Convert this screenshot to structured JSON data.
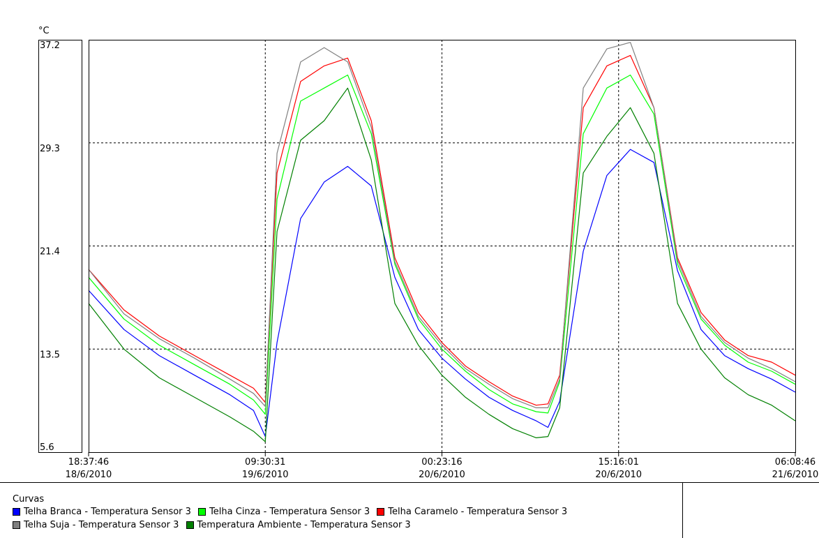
{
  "chart_data": {
    "type": "line",
    "ylabel": "°C",
    "ylim": [
      5.6,
      37.2
    ],
    "y_ticks": [
      "37.2",
      "29.3",
      "21.4",
      "13.5",
      "5.6"
    ],
    "x_ticks": [
      {
        "time": "18:37:46",
        "date": "18/6/2010"
      },
      {
        "time": "09:30:31",
        "date": "19/6/2010"
      },
      {
        "time": "00:23:16",
        "date": "20/6/2010"
      },
      {
        "time": "15:16:01",
        "date": "20/6/2010"
      },
      {
        "time": "06:08:46",
        "date": "21/6/2010"
      }
    ],
    "x_hours": [
      0,
      3,
      6,
      9,
      12,
      14,
      15,
      16,
      18,
      20,
      22,
      24,
      26,
      28,
      30,
      32,
      34,
      36,
      38,
      39,
      40,
      42,
      44,
      46,
      48,
      50,
      52,
      54,
      56,
      58,
      60
    ],
    "grid": true,
    "legend_title": "Curvas",
    "series": [
      {
        "name": "Telha Branca - Temperatura Sensor 3",
        "color": "#0000ff",
        "values": [
          18.0,
          15.0,
          13.0,
          11.5,
          10.0,
          8.8,
          6.8,
          14.0,
          23.5,
          26.3,
          27.5,
          26.0,
          19.0,
          15.0,
          12.8,
          11.2,
          9.8,
          8.8,
          8.0,
          7.5,
          9.5,
          21.0,
          26.8,
          28.8,
          27.8,
          19.5,
          15.0,
          13.0,
          12.0,
          11.2,
          10.2
        ]
      },
      {
        "name": "Telha Cinza - Temperatura Sensor 3",
        "color": "#00ff00",
        "values": [
          19.0,
          15.8,
          13.8,
          12.3,
          10.8,
          9.6,
          8.5,
          25.0,
          32.5,
          33.5,
          34.5,
          30.0,
          20.0,
          15.8,
          13.5,
          11.8,
          10.4,
          9.3,
          8.7,
          8.6,
          11.0,
          30.0,
          33.5,
          34.5,
          31.5,
          20.0,
          15.8,
          13.8,
          12.5,
          11.8,
          10.8
        ]
      },
      {
        "name": "Telha Caramelo - Temperatura Sensor 3",
        "color": "#ff0000",
        "values": [
          19.6,
          16.5,
          14.5,
          13.0,
          11.5,
          10.5,
          9.4,
          27.0,
          34.0,
          35.2,
          35.8,
          31.0,
          20.5,
          16.3,
          14.0,
          12.2,
          11.0,
          9.9,
          9.2,
          9.3,
          11.5,
          32.0,
          35.2,
          36.0,
          32.0,
          20.5,
          16.3,
          14.2,
          13.0,
          12.5,
          11.5
        ]
      },
      {
        "name": "Telha Suja - Temperatura Sensor 3",
        "color": "#808080",
        "values": [
          19.6,
          16.2,
          14.3,
          12.8,
          11.2,
          10.1,
          9.1,
          28.5,
          35.5,
          36.6,
          35.5,
          30.5,
          20.2,
          16.0,
          13.8,
          12.0,
          10.8,
          9.7,
          9.0,
          9.0,
          11.2,
          33.5,
          36.5,
          37.0,
          32.0,
          20.3,
          16.0,
          14.0,
          12.8,
          12.0,
          11.0
        ]
      },
      {
        "name": "Temperatura Ambiente - Temperatura Sensor 3",
        "color": "#008000",
        "values": [
          17.0,
          13.5,
          11.3,
          9.8,
          8.3,
          7.2,
          6.4,
          22.5,
          29.5,
          31.0,
          33.5,
          28.0,
          17.0,
          13.8,
          11.5,
          9.8,
          8.5,
          7.4,
          6.7,
          6.8,
          9.0,
          27.0,
          29.8,
          32.0,
          28.5,
          17.0,
          13.5,
          11.3,
          10.0,
          9.2,
          8.0
        ]
      }
    ]
  }
}
